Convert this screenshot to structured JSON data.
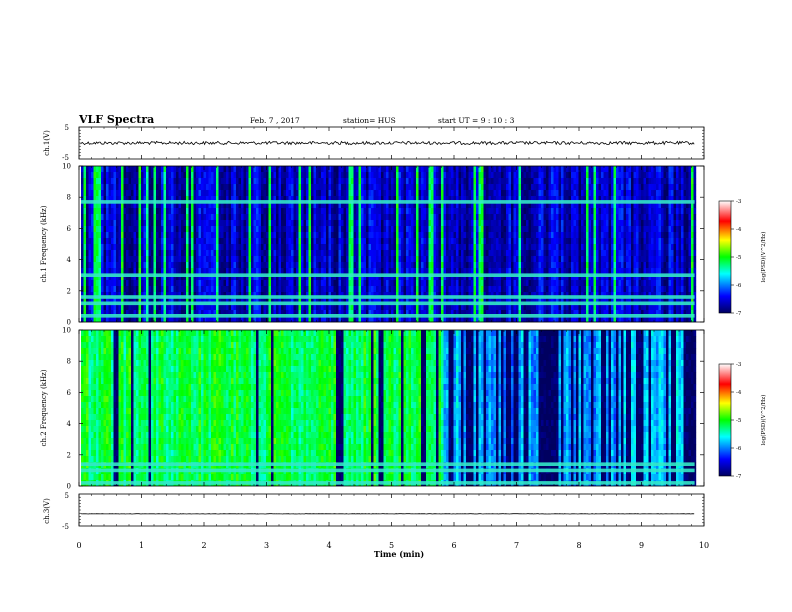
{
  "header": {
    "title": "VLF Spectra",
    "date": "Feb. 7 , 2017",
    "station": "station= HUS",
    "start": "start  UT =  9 : 10 : 3"
  },
  "chart_data": [
    {
      "type": "line",
      "panel": "ch.1 waveform",
      "ylabel": "ch.1(V)",
      "ylim": [
        -5,
        5
      ],
      "yticks": [
        "5",
        "-5"
      ],
      "series": [
        {
          "values_description_level": 0
        }
      ],
      "signal_level": 0,
      "trace_color": "#000000"
    },
    {
      "type": "heatmap",
      "panel": "ch.1 spectrogram",
      "ylabel": "ch.1  Frequency (kHz)",
      "ylim": [
        0,
        10
      ],
      "yticks": [
        "0",
        "2",
        "4",
        "6",
        "8",
        "10"
      ],
      "colorbar": {
        "label": "log(PSD)(V^2/Hz)",
        "range": [
          -7,
          -3
        ],
        "ticks": [
          "-3",
          "-4",
          "-5",
          "-6",
          "-7"
        ]
      },
      "persistent_lines_khz": [
        7.7,
        3.0,
        1.6,
        1.2,
        0.4
      ],
      "dominant_level": -6.3
    },
    {
      "type": "heatmap",
      "panel": "ch.2 spectrogram",
      "ylabel": "ch.2  Frequency (kHz)",
      "ylim": [
        0,
        10
      ],
      "yticks": [
        "0",
        "2",
        "4",
        "6",
        "8",
        "10"
      ],
      "colorbar": {
        "label": "log(PSD)(V^2/Hz)",
        "range": [
          -7,
          -3
        ],
        "ticks": [
          "-3",
          "-4",
          "-5",
          "-6",
          "-7"
        ]
      },
      "persistent_lines_khz": [
        1.4,
        1.0,
        0.2
      ],
      "dominant_level": -5.2
    },
    {
      "type": "line",
      "panel": "ch.3 waveform",
      "ylabel": "ch.3(V)",
      "ylim": [
        -5,
        5
      ],
      "yticks": [
        "5",
        "-5"
      ],
      "signal_level": -1.2,
      "trace_color": "#000000"
    }
  ],
  "xaxis": {
    "label": "Time  (min)",
    "range": [
      0,
      10
    ],
    "ticks": [
      "0",
      "1",
      "2",
      "3",
      "4",
      "5",
      "6",
      "7",
      "8",
      "9",
      "10"
    ],
    "data_end": 9.85
  }
}
